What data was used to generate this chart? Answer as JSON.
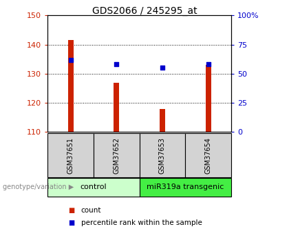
{
  "title": "GDS2066 / 245295_at",
  "categories": [
    "GSM37651",
    "GSM37652",
    "GSM37653",
    "GSM37654"
  ],
  "bar_values": [
    141.5,
    127.0,
    118.0,
    133.0
  ],
  "bar_bottom": 110,
  "bar_color": "#cc2200",
  "percentile_values": [
    62,
    58,
    55,
    58
  ],
  "percentile_color": "#0000cc",
  "left_ylim": [
    110,
    150
  ],
  "left_yticks": [
    110,
    120,
    130,
    140,
    150
  ],
  "right_ylim": [
    0,
    100
  ],
  "right_yticks": [
    0,
    25,
    50,
    75,
    100
  ],
  "right_yticklabels": [
    "0",
    "25",
    "50",
    "75",
    "100%"
  ],
  "left_tick_color": "#cc2200",
  "right_tick_color": "#0000cc",
  "groups": [
    {
      "label": "control",
      "indices": [
        0,
        1
      ],
      "color": "#ccffcc"
    },
    {
      "label": "miR319a transgenic",
      "indices": [
        2,
        3
      ],
      "color": "#44ee44"
    }
  ],
  "group_label_prefix": "genotype/variation",
  "legend_items": [
    {
      "label": "count",
      "color": "#cc2200"
    },
    {
      "label": "percentile rank within the sample",
      "color": "#0000cc"
    }
  ],
  "bar_width": 0.12,
  "grid_color": "black",
  "grid_linestyle": ":",
  "grid_linewidth": 0.7,
  "title_fontsize": 10,
  "tick_fontsize": 8,
  "sample_label_fontsize": 7,
  "group_label_fontsize": 8,
  "legend_fontsize": 7.5
}
